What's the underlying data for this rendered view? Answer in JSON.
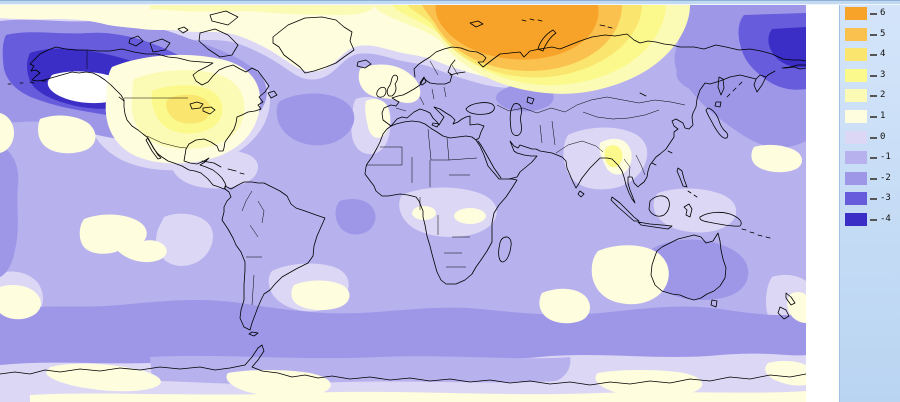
{
  "legend": {
    "panel_background": "#C9DFF7",
    "tick_color": "#555555",
    "label_color": "#111111",
    "entries": [
      {
        "label": "6",
        "color": "#F7A228"
      },
      {
        "label": "5",
        "color": "#FBC14E"
      },
      {
        "label": "4",
        "color": "#FAE56E"
      },
      {
        "label": "3",
        "color": "#FBF98B"
      },
      {
        "label": "2",
        "color": "#FCFBB5"
      },
      {
        "label": "1",
        "color": "#FEFDDE"
      },
      {
        "label": "0",
        "color": "#DCD7F4"
      },
      {
        "label": "-1",
        "color": "#B7B1EE"
      },
      {
        "label": "-2",
        "color": "#9E97E8"
      },
      {
        "label": "-3",
        "color": "#675CDC"
      },
      {
        "label": "-4",
        "color": "#3A2EC6"
      }
    ]
  },
  "map": {
    "type": "filled-contour-world-map",
    "coastline_color": "#000000",
    "off_scale_color": "#FFFFFF",
    "base_level": "-1",
    "anomaly_regions": [
      {
        "region": "arctic-ocean-north-of-scandinavia",
        "peak_level": "6"
      },
      {
        "region": "north-pacific-gulf-of-alaska",
        "peak_level": "below--4-white"
      },
      {
        "region": "bering-top-right-edge",
        "peak_level": "-4"
      },
      {
        "region": "north-america-interior",
        "peak_level": "4"
      },
      {
        "region": "myanmar-bangladesh-spot",
        "peak_level": "3"
      },
      {
        "region": "north-atlantic-south-of-greenland",
        "peak_level": "-2"
      },
      {
        "region": "southern-ocean-band",
        "peak_level": "-2"
      },
      {
        "region": "australia-interior",
        "peak_level": "-2"
      },
      {
        "region": "antarctic-coast-patches",
        "peak_level": "1"
      }
    ]
  }
}
